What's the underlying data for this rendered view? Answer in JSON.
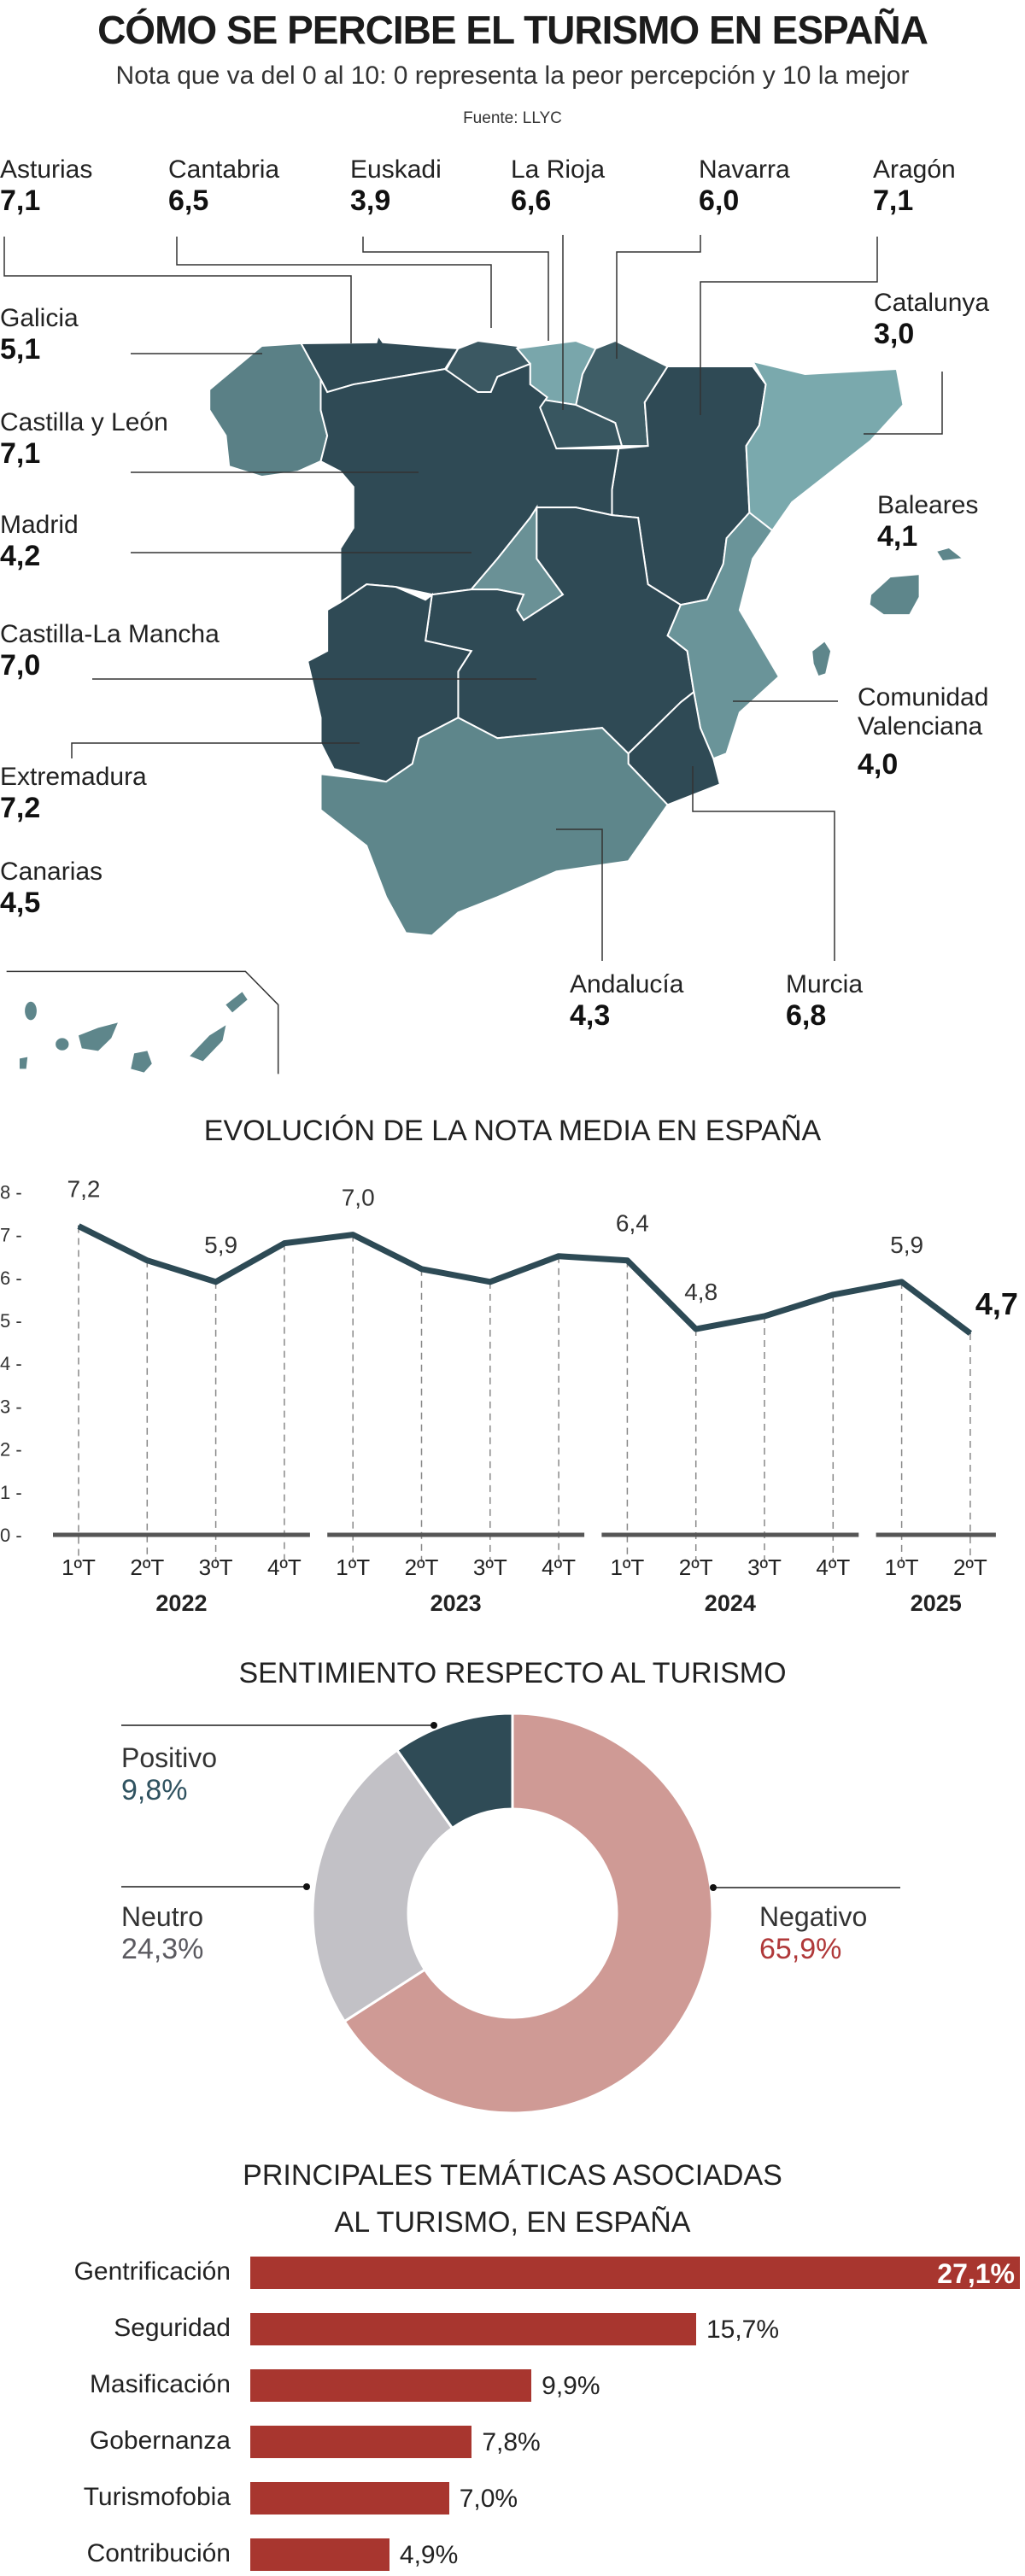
{
  "header": {
    "title": "CÓMO SE PERCIBE EL TURISMO EN ESPAÑA",
    "subtitle": "Nota que va del 0 al 10: 0 representa la peor percepción y 10 la mejor",
    "source": "Fuente: LLYC"
  },
  "colors": {
    "dark": "#2f4a55",
    "medium": "#5e868b",
    "light": "#7aa9ad",
    "line": "#2d4a55",
    "negative": "#cf9a95",
    "neutral": "#c2c1c6",
    "positive": "#2f4b56",
    "negative_text": "#b0393a",
    "positive_text": "#2f5260",
    "neutral_text": "#5b5a60",
    "bar": "#a8362f"
  },
  "map": {
    "regions": {
      "asturias": {
        "name": "Asturias",
        "value": "7,1"
      },
      "cantabria": {
        "name": "Cantabria",
        "value": "6,5"
      },
      "euskadi": {
        "name": "Euskadi",
        "value": "3,9"
      },
      "larioja": {
        "name": "La Rioja",
        "value": "6,6"
      },
      "navarra": {
        "name": "Navarra",
        "value": "6,0"
      },
      "aragon": {
        "name": "Aragón",
        "value": "7,1"
      },
      "galicia": {
        "name": "Galicia",
        "value": "5,1"
      },
      "catalunya": {
        "name": "Catalunya",
        "value": "3,0"
      },
      "cyl": {
        "name": "Castilla y León",
        "value": "7,1"
      },
      "madrid": {
        "name": "Madrid",
        "value": "4,2"
      },
      "baleares": {
        "name": "Baleares",
        "value": "4,1"
      },
      "clm": {
        "name": "Castilla-La Mancha",
        "value": "7,0"
      },
      "valencia": {
        "name_line1": "Comunidad",
        "name_line2": "Valenciana",
        "value": "4,0"
      },
      "extremadura": {
        "name": "Extremadura",
        "value": "7,2"
      },
      "canarias": {
        "name": "Canarias",
        "value": "4,5"
      },
      "andalucia": {
        "name": "Andalucía",
        "value": "4,3"
      },
      "murcia": {
        "name": "Murcia",
        "value": "6,8"
      }
    }
  },
  "chart_data": [
    {
      "type": "line",
      "title": "EVOLUCIÓN DE LA NOTA MEDIA EN ESPAÑA",
      "categories": [
        "1ºT",
        "2ºT",
        "3ºT",
        "4ºT",
        "1ºT",
        "2ºT",
        "3ºT",
        "4ºT",
        "1ºT",
        "2ºT",
        "3ºT",
        "4ºT",
        "1ºT",
        "2ºT"
      ],
      "years": [
        "2022",
        "2023",
        "2024",
        "2025"
      ],
      "values": [
        7.2,
        6.4,
        5.9,
        6.8,
        7.0,
        6.2,
        5.9,
        6.5,
        6.4,
        4.8,
        5.1,
        5.6,
        5.9,
        4.7
      ],
      "data_labels": [
        {
          "index": 0,
          "text": "7,2"
        },
        {
          "index": 2,
          "text": "5,9"
        },
        {
          "index": 4,
          "text": "7,0"
        },
        {
          "index": 8,
          "text": "6,4"
        },
        {
          "index": 9,
          "text": "4,8"
        },
        {
          "index": 12,
          "text": "5,9"
        },
        {
          "index": 13,
          "text": "4,7",
          "bold": true
        }
      ],
      "yticks": [
        "0",
        "1",
        "2",
        "3",
        "4",
        "5",
        "6",
        "7",
        "8"
      ],
      "ylim": [
        0,
        8
      ],
      "grid": "dashed vertical"
    },
    {
      "type": "pie",
      "title": "SENTIMIENTO RESPECTO AL TURISMO",
      "donut": true,
      "slices": [
        {
          "label": "Negativo",
          "value": 65.9,
          "text": "65,9%"
        },
        {
          "label": "Neutro",
          "value": 24.3,
          "text": "24,3%"
        },
        {
          "label": "Positivo",
          "value": 9.8,
          "text": "9,8%"
        }
      ]
    },
    {
      "type": "bar",
      "orientation": "horizontal",
      "title_line1": "PRINCIPALES TEMÁTICAS ASOCIADAS",
      "title_line2": "AL TURISMO, EN ESPAÑA",
      "categories": [
        "Gentrificación",
        "Seguridad",
        "Masificación",
        "Gobernanza",
        "Turismofobia",
        "Contribución"
      ],
      "values": [
        27.1,
        15.7,
        9.9,
        7.8,
        7.0,
        4.9
      ],
      "labels": [
        "27,1%",
        "15,7%",
        "9,9%",
        "7,8%",
        "7,0%",
        "4,9%"
      ]
    }
  ]
}
